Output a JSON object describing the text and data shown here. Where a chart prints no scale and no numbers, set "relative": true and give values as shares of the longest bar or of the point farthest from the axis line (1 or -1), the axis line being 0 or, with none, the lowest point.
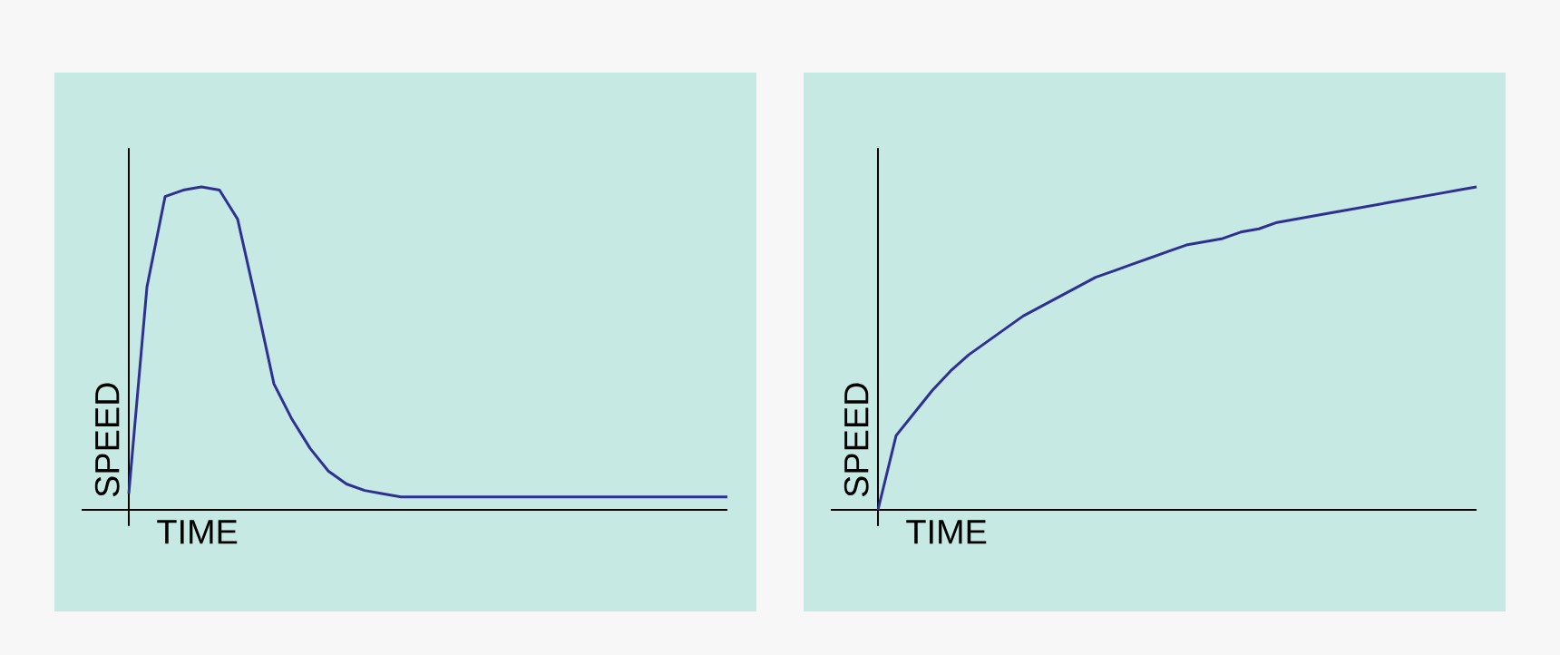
{
  "chart_data": [
    {
      "type": "line",
      "relative": true,
      "xlabel": "TIME",
      "ylabel": "SPEED",
      "categories": [
        null,
        null,
        null,
        null,
        null,
        null,
        null,
        null,
        null,
        null,
        null,
        null,
        null,
        null,
        null,
        null,
        null,
        null,
        null,
        null,
        null,
        null,
        null,
        null,
        null,
        null,
        null,
        null,
        null,
        null,
        null,
        null,
        null,
        null
      ],
      "series": [
        {
          "color": "#2e3192",
          "values": [
            0.05,
            0.69,
            0.97,
            0.99,
            1,
            0.99,
            0.9,
            0.65,
            0.39,
            0.28,
            0.19,
            0.12,
            0.08,
            0.06,
            0.05,
            0.04,
            0.04,
            0.04,
            0.04,
            0.04,
            0.04,
            0.04,
            0.04,
            0.04,
            0.04,
            0.04,
            0.04,
            0.04,
            0.04,
            0.04,
            0.04,
            0.04,
            0.04,
            0.04
          ]
        }
      ]
    },
    {
      "type": "line",
      "relative": true,
      "xlabel": "TIME",
      "ylabel": "SPEED",
      "categories": [
        null,
        null,
        null,
        null,
        null,
        null,
        null,
        null,
        null,
        null,
        null,
        null,
        null,
        null,
        null,
        null,
        null,
        null,
        null,
        null,
        null,
        null,
        null,
        null,
        null,
        null,
        null,
        null,
        null,
        null,
        null,
        null,
        null,
        null
      ],
      "series": [
        {
          "color": "#2e3192",
          "values": [
            0,
            0.23,
            0.3,
            0.37,
            0.43,
            0.48,
            0.52,
            0.56,
            0.6,
            0.63,
            0.66,
            0.69,
            0.72,
            0.74,
            0.76,
            0.78,
            0.8,
            0.82,
            0.83,
            0.84,
            0.86,
            0.87,
            0.89,
            0.9,
            0.91,
            0.92,
            0.93,
            0.94,
            0.95,
            0.96,
            0.97,
            0.98,
            0.99,
            1
          ]
        }
      ]
    }
  ]
}
